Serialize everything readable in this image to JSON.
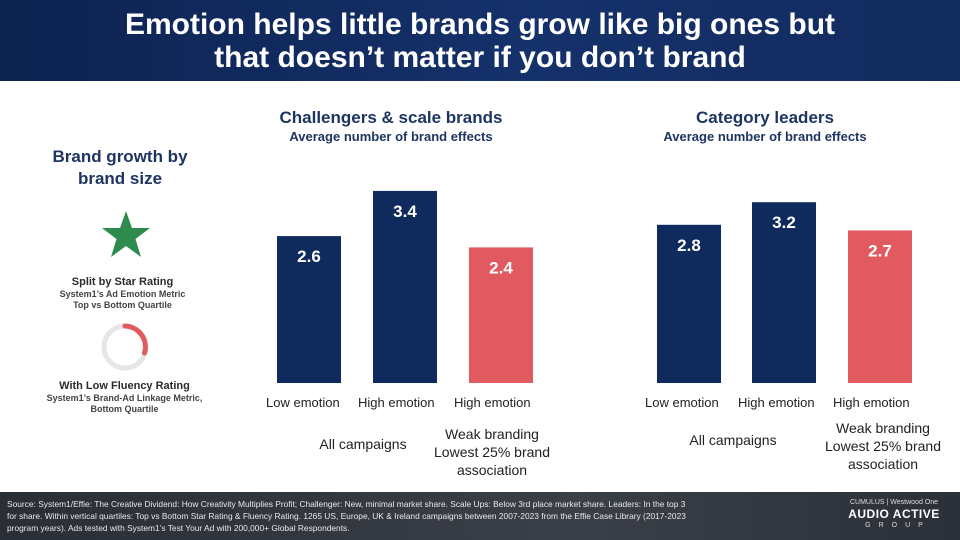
{
  "header": {
    "title_line1": "Emotion helps little brands grow like big ones but",
    "title_line2": "that doesn’t matter if you don’t brand"
  },
  "sidebar": {
    "title_line1": "Brand growth by",
    "title_line2": "brand size",
    "star_icon": "star-icon",
    "star_color": "#2e8b4e",
    "star_rating": {
      "main": "Split by Star Rating",
      "sub1": "System1’s Ad Emotion Metric",
      "sub2": "Top vs Bottom Quartile"
    },
    "gauge_icon": "gauge-icon",
    "gauge_color": "#e05a5f",
    "fluency_rating": {
      "main": "With Low Fluency Rating",
      "sub1": "System1’s Brand-Ad Linkage Metric,",
      "sub2": "Bottom Quartile"
    }
  },
  "groups": {
    "all_campaigns": "All campaigns",
    "weak_branding_line1": "Weak branding",
    "weak_branding_line2": "Lowest 25% brand",
    "weak_branding_line3": "association"
  },
  "chart_data": [
    {
      "type": "bar",
      "title": "Challengers & scale brands",
      "subtitle": "Average number of brand effects",
      "categories": [
        "Low emotion",
        "High emotion",
        "High emotion"
      ],
      "values": [
        2.6,
        3.4,
        2.4
      ],
      "value_labels": [
        "2.6",
        "3.4",
        "2.4"
      ],
      "colors": [
        "#0f2a5c",
        "#0f2a5c",
        "#e05a5f"
      ],
      "ylim": [
        0,
        3.8
      ],
      "grid": false,
      "legend": "none"
    },
    {
      "type": "bar",
      "title": "Category leaders",
      "subtitle": "Average number of brand effects",
      "categories": [
        "Low emotion",
        "High emotion",
        "High emotion"
      ],
      "values": [
        2.8,
        3.2,
        2.7
      ],
      "value_labels": [
        "2.8",
        "3.2",
        "2.7"
      ],
      "colors": [
        "#0f2a5c",
        "#0f2a5c",
        "#e05a5f"
      ],
      "ylim": [
        0,
        3.8
      ],
      "grid": false,
      "legend": "none"
    }
  ],
  "footer": {
    "source_line1": "Source: System1/Effie: The Creative Dividend: How Creativity Multiplies Profit; Challenger: New, minimal market share. Scale Ups: Below 3rd place market share. Leaders: In the top 3",
    "source_line2": "for share. Within vertical quartiles: Top vs Bottom Star Rating & Fluency Rating. 1265 US, Europe, UK & Ireland campaigns between 2007-2023 from the Effie Case Library (2017-2023",
    "source_line3": "program years). Ads tested with System1’s Test Your Ad with 200,000+ Global Respondents.",
    "logo_top": "CUMULUS | Westwood One",
    "logo_main": "AUDIO ACTIVE",
    "logo_sub": "GROUP"
  }
}
